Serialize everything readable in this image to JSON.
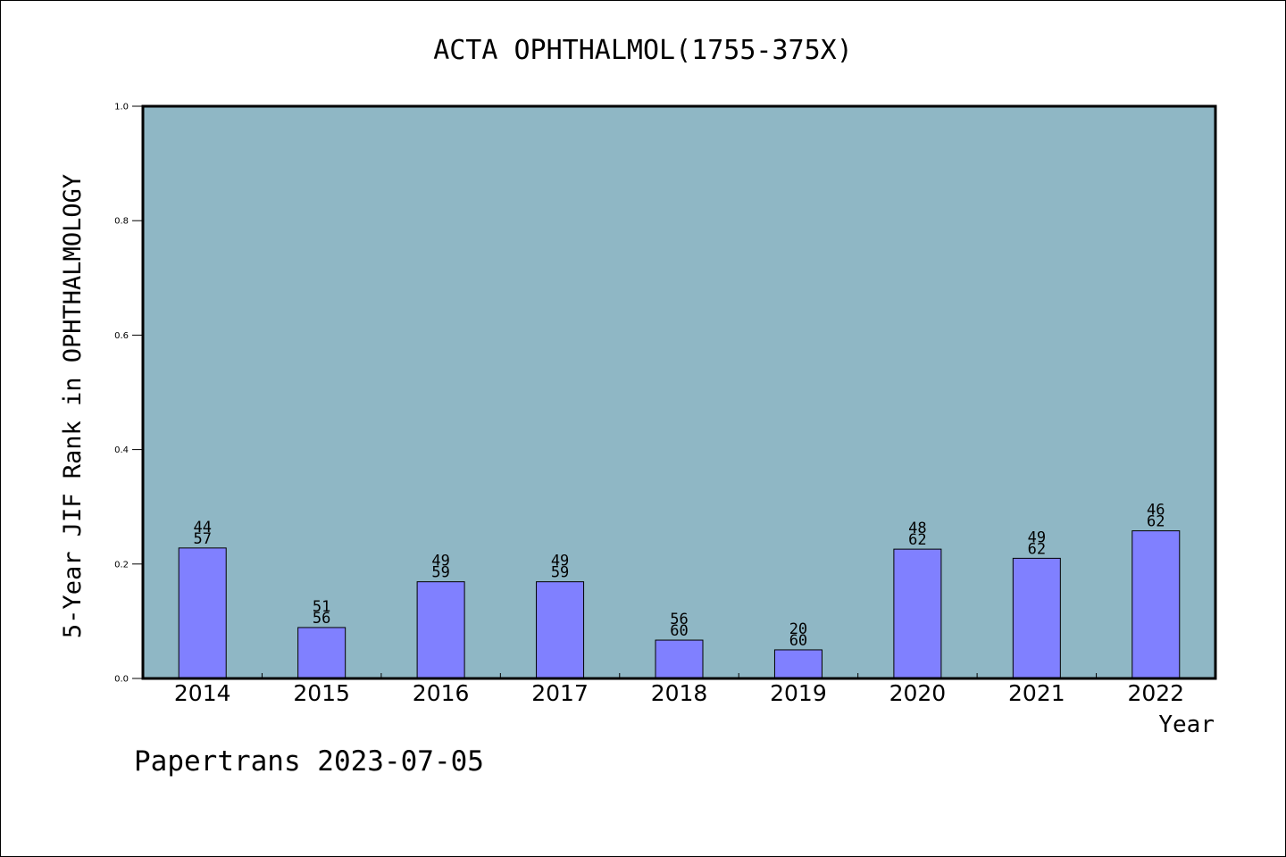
{
  "chart_data": {
    "type": "bar",
    "title": "ACTA OPHTHALMOL(1755-375X)",
    "xlabel": "Year",
    "ylabel": "5-Year JIF Rank in OPHTHALMOLOGY",
    "ylim": [
      0,
      1.0
    ],
    "yticks": [
      "0.0",
      "0.2",
      "0.4",
      "0.6",
      "0.8",
      "1.0"
    ],
    "ytick_values": [
      0.0,
      0.2,
      0.4,
      0.6,
      0.8,
      1.0
    ],
    "categories": [
      "2014",
      "2015",
      "2016",
      "2017",
      "2018",
      "2019",
      "2020",
      "2021",
      "2022"
    ],
    "values": [
      0.228,
      0.089,
      0.169,
      0.169,
      0.067,
      0.05,
      0.226,
      0.21,
      0.258
    ],
    "labels_top": [
      "44",
      "51",
      "49",
      "49",
      "56",
      "20",
      "48",
      "49",
      "46"
    ],
    "labels_bottom": [
      "57",
      "56",
      "59",
      "59",
      "60",
      "60",
      "62",
      "62",
      "62"
    ],
    "grid": false,
    "colors": {
      "plot_background": "#8fb7c5",
      "bar_fill": "#8080ff",
      "bar_stroke": "#000000"
    }
  },
  "footer": {
    "credit": "Papertrans 2023-07-05"
  }
}
